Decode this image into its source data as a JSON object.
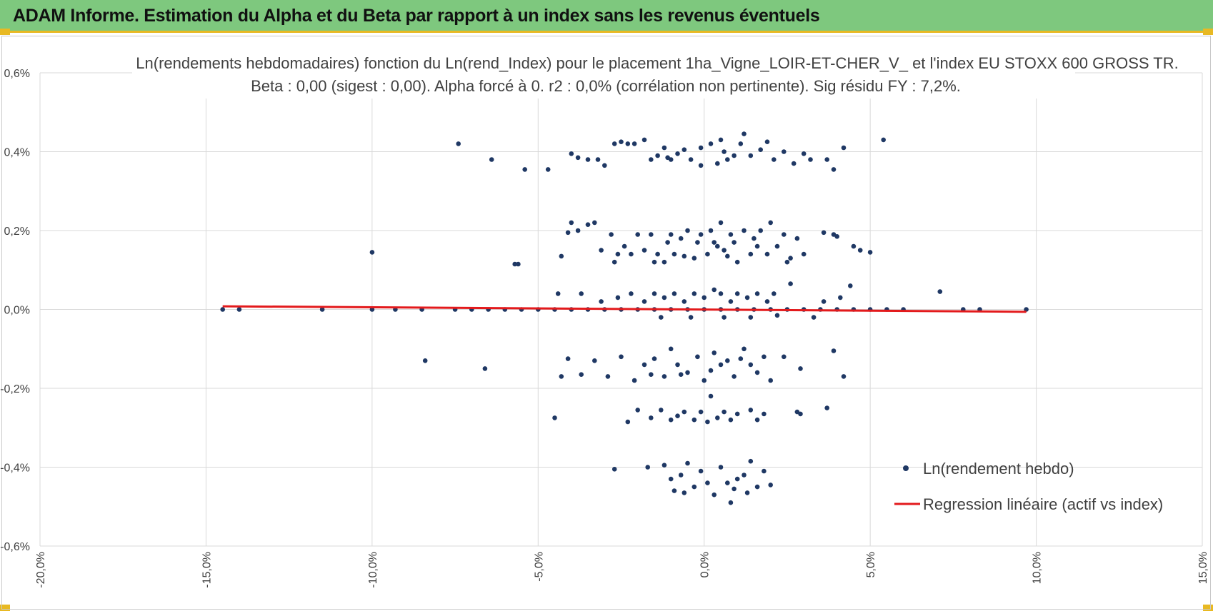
{
  "header": {
    "title": "ADAM Informe. Estimation du Alpha et du Beta par rapport à un index sans les revenus éventuels"
  },
  "colors": {
    "banner": "#7ec87e",
    "accent": "#e8b923",
    "points": "#1f3864",
    "regression": "#e31a1c",
    "grid": "#d9d9d9"
  },
  "chart_data": {
    "type": "scatter",
    "title": "Ln(rendements hebdomadaires) fonction du Ln(rend_Index) pour le placement 1ha_Vigne_LOIR-ET-CHER_V_ et l'index EU STOXX 600 GROSS TR.",
    "subtitle": "Beta : 0,00 (sigest : 0,00). Alpha forcé à 0. r2 : 0,0% (corrélation non pertinente). Sig résidu FY : 7,2%.",
    "xlabel": "",
    "ylabel": "",
    "xlim": [
      -20,
      15
    ],
    "ylim": [
      -0.6,
      0.6
    ],
    "x_ticks": [
      "-20,0%",
      "-15,0%",
      "-10,0%",
      "-5,0%",
      "0,0%",
      "5,0%",
      "10,0%",
      "15,0%"
    ],
    "y_ticks": [
      "0,6%",
      "0,4%",
      "0,2%",
      "0,0%",
      "-0,2%",
      "-0,4%",
      "-0,6%"
    ],
    "grid": true,
    "legend_position": "bottom-right",
    "series": [
      {
        "name": "Ln(rendement hebdo)",
        "type": "scatter",
        "points": [
          [
            -7.4,
            0.42
          ],
          [
            -6.4,
            0.38
          ],
          [
            -5.4,
            0.355
          ],
          [
            -4.7,
            0.355
          ],
          [
            -4.0,
            0.395
          ],
          [
            -3.8,
            0.385
          ],
          [
            -3.5,
            0.38
          ],
          [
            -3.2,
            0.38
          ],
          [
            -3.0,
            0.365
          ],
          [
            -2.7,
            0.42
          ],
          [
            -2.5,
            0.425
          ],
          [
            -2.3,
            0.42
          ],
          [
            -2.1,
            0.42
          ],
          [
            -1.8,
            0.43
          ],
          [
            -1.6,
            0.38
          ],
          [
            -1.4,
            0.39
          ],
          [
            -1.2,
            0.41
          ],
          [
            -1.1,
            0.385
          ],
          [
            -1.0,
            0.38
          ],
          [
            -0.8,
            0.395
          ],
          [
            -0.6,
            0.405
          ],
          [
            -0.4,
            0.38
          ],
          [
            -0.1,
            0.365
          ],
          [
            -0.1,
            0.41
          ],
          [
            0.2,
            0.42
          ],
          [
            0.4,
            0.37
          ],
          [
            0.5,
            0.43
          ],
          [
            0.6,
            0.4
          ],
          [
            0.7,
            0.38
          ],
          [
            0.9,
            0.39
          ],
          [
            1.1,
            0.42
          ],
          [
            1.2,
            0.445
          ],
          [
            1.4,
            0.39
          ],
          [
            1.7,
            0.405
          ],
          [
            1.9,
            0.425
          ],
          [
            2.1,
            0.38
          ],
          [
            2.4,
            0.4
          ],
          [
            2.7,
            0.37
          ],
          [
            3.0,
            0.395
          ],
          [
            3.2,
            0.38
          ],
          [
            3.7,
            0.38
          ],
          [
            3.9,
            0.355
          ],
          [
            4.2,
            0.41
          ],
          [
            5.4,
            0.43
          ],
          [
            -10.0,
            0.145
          ],
          [
            -5.7,
            0.115
          ],
          [
            -5.6,
            0.115
          ],
          [
            -4.3,
            0.135
          ],
          [
            -4.1,
            0.195
          ],
          [
            -4.0,
            0.22
          ],
          [
            -3.8,
            0.2
          ],
          [
            -3.5,
            0.215
          ],
          [
            -3.3,
            0.22
          ],
          [
            -3.1,
            0.15
          ],
          [
            -2.8,
            0.19
          ],
          [
            -2.6,
            0.14
          ],
          [
            -2.4,
            0.16
          ],
          [
            -2.2,
            0.14
          ],
          [
            -2.0,
            0.19
          ],
          [
            -1.8,
            0.15
          ],
          [
            -1.6,
            0.19
          ],
          [
            -1.4,
            0.14
          ],
          [
            -1.2,
            0.12
          ],
          [
            -1.0,
            0.19
          ],
          [
            -0.9,
            0.14
          ],
          [
            -0.7,
            0.18
          ],
          [
            -0.5,
            0.2
          ],
          [
            -0.3,
            0.13
          ],
          [
            -0.1,
            0.19
          ],
          [
            0.1,
            0.14
          ],
          [
            0.2,
            0.2
          ],
          [
            0.4,
            0.16
          ],
          [
            0.5,
            0.22
          ],
          [
            0.6,
            0.15
          ],
          [
            0.8,
            0.19
          ],
          [
            1.0,
            0.12
          ],
          [
            1.2,
            0.2
          ],
          [
            1.4,
            0.14
          ],
          [
            1.5,
            0.18
          ],
          [
            1.7,
            0.2
          ],
          [
            1.9,
            0.14
          ],
          [
            2.0,
            0.22
          ],
          [
            2.2,
            0.16
          ],
          [
            2.4,
            0.19
          ],
          [
            2.6,
            0.13
          ],
          [
            2.8,
            0.18
          ],
          [
            3.0,
            0.14
          ],
          [
            3.6,
            0.195
          ],
          [
            3.9,
            0.19
          ],
          [
            4.0,
            0.185
          ],
          [
            4.5,
            0.16
          ],
          [
            4.7,
            0.15
          ],
          [
            5.0,
            0.145
          ],
          [
            -0.2,
            0.17
          ],
          [
            0.3,
            0.17
          ],
          [
            0.9,
            0.17
          ],
          [
            1.6,
            0.16
          ],
          [
            -1.1,
            0.17
          ],
          [
            -1.5,
            0.12
          ],
          [
            -2.7,
            0.12
          ],
          [
            2.5,
            0.12
          ],
          [
            0.7,
            0.135
          ],
          [
            -0.6,
            0.135
          ],
          [
            -4.4,
            0.04
          ],
          [
            -3.7,
            0.04
          ],
          [
            -3.1,
            0.02
          ],
          [
            -2.6,
            0.03
          ],
          [
            -2.2,
            0.04
          ],
          [
            -1.8,
            0.02
          ],
          [
            -1.5,
            0.04
          ],
          [
            -1.2,
            0.03
          ],
          [
            -0.9,
            0.04
          ],
          [
            -0.6,
            0.02
          ],
          [
            -0.3,
            0.04
          ],
          [
            0.0,
            0.03
          ],
          [
            0.3,
            0.05
          ],
          [
            0.5,
            0.04
          ],
          [
            0.8,
            0.02
          ],
          [
            1.0,
            0.04
          ],
          [
            1.3,
            0.03
          ],
          [
            1.6,
            0.04
          ],
          [
            1.9,
            0.02
          ],
          [
            2.1,
            0.04
          ],
          [
            2.6,
            0.065
          ],
          [
            3.6,
            0.02
          ],
          [
            4.1,
            0.03
          ],
          [
            4.4,
            0.06
          ],
          [
            7.1,
            0.045
          ],
          [
            -14.5,
            0.0
          ],
          [
            -14.0,
            0.0
          ],
          [
            -11.5,
            0.0
          ],
          [
            -10.0,
            0.0
          ],
          [
            -9.3,
            0.0
          ],
          [
            -8.5,
            0.0
          ],
          [
            -7.5,
            0.0
          ],
          [
            -7.0,
            0.0
          ],
          [
            -6.5,
            0.0
          ],
          [
            -6.0,
            0.0
          ],
          [
            -5.5,
            0.0
          ],
          [
            -5.0,
            0.0
          ],
          [
            -4.5,
            0.0
          ],
          [
            -4.0,
            0.0
          ],
          [
            -3.5,
            0.0
          ],
          [
            -3.0,
            0.0
          ],
          [
            -2.5,
            0.0
          ],
          [
            -2.0,
            0.0
          ],
          [
            -1.5,
            0.0
          ],
          [
            -1.0,
            0.0
          ],
          [
            -0.5,
            0.0
          ],
          [
            0.0,
            0.0
          ],
          [
            0.5,
            0.0
          ],
          [
            1.0,
            0.0
          ],
          [
            1.5,
            0.0
          ],
          [
            2.0,
            0.0
          ],
          [
            2.5,
            0.0
          ],
          [
            3.0,
            0.0
          ],
          [
            3.5,
            0.0
          ],
          [
            4.0,
            0.0
          ],
          [
            4.5,
            0.0
          ],
          [
            5.0,
            0.0
          ],
          [
            5.5,
            0.0
          ],
          [
            6.0,
            0.0
          ],
          [
            7.8,
            0.0
          ],
          [
            8.3,
            0.0
          ],
          [
            9.7,
            0.0
          ],
          [
            -1.3,
            -0.02
          ],
          [
            -0.4,
            -0.02
          ],
          [
            0.6,
            -0.02
          ],
          [
            1.4,
            -0.02
          ],
          [
            2.2,
            -0.015
          ],
          [
            3.3,
            -0.02
          ],
          [
            -8.4,
            -0.13
          ],
          [
            -6.6,
            -0.15
          ],
          [
            -4.1,
            -0.125
          ],
          [
            -3.7,
            -0.165
          ],
          [
            -3.3,
            -0.13
          ],
          [
            -2.9,
            -0.17
          ],
          [
            -2.5,
            -0.12
          ],
          [
            -2.1,
            -0.18
          ],
          [
            -1.8,
            -0.14
          ],
          [
            -1.5,
            -0.125
          ],
          [
            -1.2,
            -0.17
          ],
          [
            -1.0,
            -0.1
          ],
          [
            -0.8,
            -0.14
          ],
          [
            -0.5,
            -0.16
          ],
          [
            -0.2,
            -0.12
          ],
          [
            0.0,
            -0.18
          ],
          [
            0.3,
            -0.11
          ],
          [
            0.5,
            -0.14
          ],
          [
            0.7,
            -0.13
          ],
          [
            0.9,
            -0.17
          ],
          [
            1.2,
            -0.1
          ],
          [
            1.4,
            -0.14
          ],
          [
            1.6,
            -0.16
          ],
          [
            1.8,
            -0.12
          ],
          [
            2.0,
            -0.18
          ],
          [
            2.4,
            -0.12
          ],
          [
            2.9,
            -0.15
          ],
          [
            3.9,
            -0.105
          ],
          [
            4.2,
            -0.17
          ],
          [
            -4.3,
            -0.17
          ],
          [
            -1.6,
            -0.165
          ],
          [
            0.2,
            -0.155
          ],
          [
            1.1,
            -0.125
          ],
          [
            -0.7,
            -0.165
          ],
          [
            -4.5,
            -0.275
          ],
          [
            -2.3,
            -0.285
          ],
          [
            -2.0,
            -0.255
          ],
          [
            -1.3,
            -0.255
          ],
          [
            -1.0,
            -0.28
          ],
          [
            -0.8,
            -0.27
          ],
          [
            -0.6,
            -0.26
          ],
          [
            -0.3,
            -0.28
          ],
          [
            -0.1,
            -0.26
          ],
          [
            0.2,
            -0.22
          ],
          [
            0.4,
            -0.275
          ],
          [
            0.6,
            -0.26
          ],
          [
            0.8,
            -0.28
          ],
          [
            1.0,
            -0.265
          ],
          [
            1.4,
            -0.255
          ],
          [
            1.6,
            -0.28
          ],
          [
            1.8,
            -0.265
          ],
          [
            2.8,
            -0.26
          ],
          [
            2.9,
            -0.265
          ],
          [
            3.7,
            -0.25
          ],
          [
            -1.6,
            -0.275
          ],
          [
            0.1,
            -0.285
          ],
          [
            -2.7,
            -0.405
          ],
          [
            -1.7,
            -0.4
          ],
          [
            -1.2,
            -0.395
          ],
          [
            -1.0,
            -0.43
          ],
          [
            -0.9,
            -0.46
          ],
          [
            -0.7,
            -0.42
          ],
          [
            -0.5,
            -0.39
          ],
          [
            -0.3,
            -0.45
          ],
          [
            -0.1,
            -0.41
          ],
          [
            0.1,
            -0.44
          ],
          [
            0.3,
            -0.47
          ],
          [
            0.5,
            -0.4
          ],
          [
            0.7,
            -0.44
          ],
          [
            0.8,
            -0.49
          ],
          [
            1.0,
            -0.43
          ],
          [
            1.2,
            -0.42
          ],
          [
            1.4,
            -0.385
          ],
          [
            1.6,
            -0.45
          ],
          [
            1.8,
            -0.41
          ],
          [
            2.0,
            -0.445
          ],
          [
            -0.6,
            -0.465
          ],
          [
            0.9,
            -0.455
          ],
          [
            1.3,
            -0.465
          ]
        ]
      },
      {
        "name": "Regression linéaire (actif vs index)",
        "type": "line",
        "points": [
          [
            -14.5,
            0.008
          ],
          [
            9.7,
            -0.006
          ]
        ]
      }
    ]
  }
}
